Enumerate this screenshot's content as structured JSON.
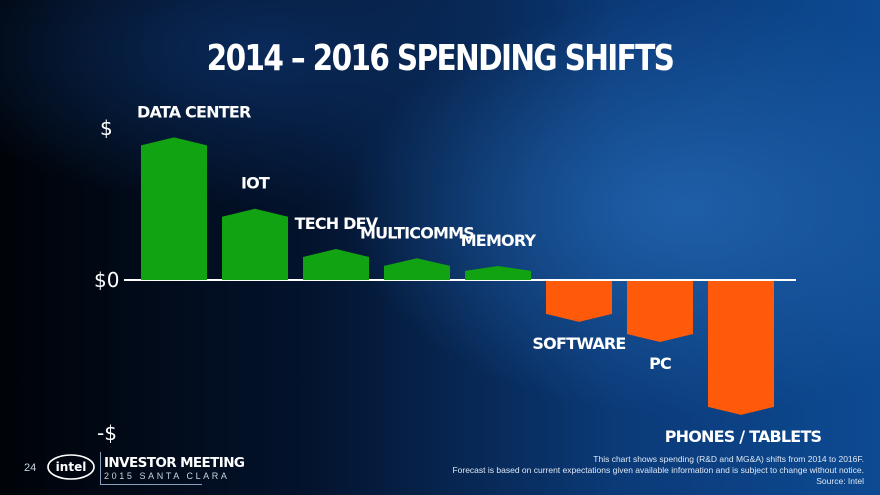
{
  "slide": {
    "title": "2014 – 2016 SPENDING SHIFTS",
    "page_number": "24",
    "brand": {
      "logo_text": "intel",
      "event_title": "INVESTOR MEETING",
      "event_subtitle": "2015 SANTA CLARA"
    },
    "footnote": {
      "line1": "This chart shows spending (R&D and MG&A) shifts from 2014  to 2016F.",
      "line2": "Forecast is based on current expectations given available information and is subject to change without notice.",
      "line3": "Source: Intel"
    },
    "colors": {
      "positive": "#12a312",
      "negative": "#ff5a0a",
      "axis": "#ffffff",
      "text": "#ffffff"
    }
  },
  "chart_data": {
    "type": "bar",
    "title": "2014 – 2016 SPENDING SHIFTS",
    "y_tick_labels": [
      "$",
      "$0",
      "-$"
    ],
    "ylim": [
      -100,
      100
    ],
    "categories": [
      "DATA CENTER",
      "IOT",
      "TECH DEV",
      "MULTICOMMS",
      "MEMORY",
      "SOFTWARE",
      "PC",
      "PHONES / TABLETS"
    ],
    "values": [
      92,
      46,
      20,
      14,
      9,
      -27,
      -40,
      -87
    ],
    "grid": false,
    "legend": "none"
  }
}
